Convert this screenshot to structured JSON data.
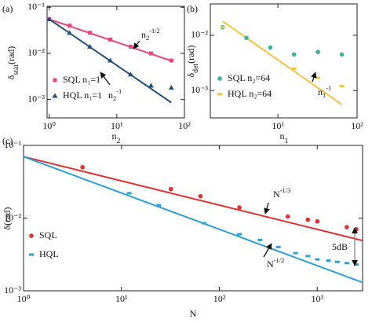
{
  "chart_data": [
    {
      "type": "scatter",
      "panel_label": "(a)",
      "xlabel": [
        {
          "t": "n"
        },
        {
          "t": "2",
          "s": "sub"
        }
      ],
      "ylabel": [
        {
          "t": "δ"
        },
        {
          "t": "stat",
          "s": "sub"
        },
        {
          "t": "(rad)"
        }
      ],
      "xlog": true,
      "ylog": true,
      "xlim": [
        0.93,
        100
      ],
      "ylim": [
        0.0004,
        0.105
      ],
      "xticks": [
        {
          "value": 1,
          "label": "10⁰"
        },
        {
          "value": 10,
          "label": "10¹"
        },
        {
          "value": 100,
          "label": "10²"
        }
      ],
      "yticks": [
        {
          "value": 0.001,
          "label": "10⁻³"
        },
        {
          "value": 0.01,
          "label": "10⁻²"
        },
        {
          "value": 0.1,
          "label": "10⁻¹"
        }
      ],
      "series": [
        {
          "name": "SQL n₁=1",
          "color": "#e8457a",
          "marker": "square",
          "x": [
            1,
            2,
            4,
            8,
            16,
            32,
            64
          ],
          "values": [
            0.055,
            0.04,
            0.028,
            0.02,
            0.014,
            0.01,
            0.007
          ]
        },
        {
          "name": "HQL n₁=1",
          "color": "#1f4e79",
          "marker": "triangle",
          "x": [
            1,
            2,
            4,
            8,
            16,
            32,
            64
          ],
          "values": [
            0.055,
            0.028,
            0.014,
            0.007,
            0.0035,
            0.002,
            0.0018
          ]
        }
      ],
      "fits": [
        {
          "color": "#e8457a",
          "x": [
            1,
            64
          ],
          "values": [
            0.055,
            0.0069
          ]
        },
        {
          "color": "#1f4e79",
          "x": [
            1,
            64
          ],
          "values": [
            0.055,
            0.00086
          ]
        }
      ],
      "annotations": [
        {
          "text": [
            {
              "t": "n"
            },
            {
              "t": "2",
              "s": "sub"
            },
            {
              "t": "-1/2",
              "s": "sup"
            }
          ],
          "color": "#e8457a"
        },
        {
          "text": [
            {
              "t": "n"
            },
            {
              "t": "2",
              "s": "sub"
            },
            {
              "t": "-1",
              "s": "sup"
            }
          ],
          "color": "#1f4e79"
        }
      ]
    },
    {
      "type": "scatter",
      "panel_label": "(b)",
      "xlabel": [
        {
          "t": "n"
        },
        {
          "t": "1",
          "s": "sub"
        }
      ],
      "ylabel": [
        {
          "t": "δ"
        },
        {
          "t": "det",
          "s": "sub"
        },
        {
          "t": "(rad)"
        }
      ],
      "xlog": true,
      "ylog": true,
      "xlim": [
        1.4,
        100
      ],
      "ylim": [
        0.00032,
        0.037
      ],
      "xticks": [
        {
          "value": 10,
          "label": "10¹"
        },
        {
          "value": 100,
          "label": "10²"
        }
      ],
      "yticks": [
        {
          "value": 0.001,
          "label": "10⁻³"
        },
        {
          "value": 0.01,
          "label": "10⁻²"
        }
      ],
      "series": [
        {
          "name": "SQL n₂=64",
          "color": "#3cb39b",
          "marker": "circle",
          "x": [
            2,
            4,
            8,
            16,
            32,
            64
          ],
          "values": [
            0.014,
            0.009,
            0.006,
            0.0045,
            0.005,
            0.0045
          ]
        },
        {
          "name": "HQL n₂=64",
          "color": "#f5c242",
          "marker": "bar",
          "x": [
            2,
            16,
            32,
            64
          ],
          "values": [
            0.014,
            0.0025,
            0.0017,
            0.0012
          ]
        }
      ],
      "fits": [
        {
          "color": "#f5c242",
          "x": [
            2,
            64
          ],
          "values": [
            0.018,
            0.00056
          ]
        }
      ],
      "annotations": [
        {
          "text": [
            {
              "t": "n"
            },
            {
              "t": "1",
              "s": "sub"
            },
            {
              "t": "-1",
              "s": "sup"
            }
          ],
          "color": "#f5c242"
        }
      ]
    },
    {
      "type": "scatter",
      "panel_label": "(c)",
      "xlabel": [
        {
          "t": "N"
        }
      ],
      "ylabel": [
        {
          "t": "δ(rad)"
        }
      ],
      "xlog": true,
      "ylog": true,
      "xlim": [
        1,
        2900
      ],
      "ylim": [
        0.001,
        0.1
      ],
      "xticks": [
        {
          "value": 1,
          "label": "10⁰"
        },
        {
          "value": 10,
          "label": "10¹"
        },
        {
          "value": 100,
          "label": "10²"
        },
        {
          "value": 1000,
          "label": "10³"
        }
      ],
      "yticks": [
        {
          "value": 0.001,
          "label": "10⁻³"
        },
        {
          "value": 0.01,
          "label": "10⁻²"
        },
        {
          "value": 0.1,
          "label": "10⁻¹"
        }
      ],
      "series": [
        {
          "name": "SQL",
          "color": "#e03030",
          "marker": "circle",
          "x": [
            4,
            32,
            64,
            160,
            500,
            800,
            1000,
            2000,
            2500
          ],
          "values": [
            0.05,
            0.025,
            0.02,
            0.014,
            0.0105,
            0.0095,
            0.009,
            0.0075,
            0.007
          ]
        },
        {
          "name": "HQL",
          "color": "#2a9fd6",
          "marker": "bar",
          "x": [
            12,
            24,
            70,
            160,
            260,
            400,
            600,
            800,
            1000,
            1300,
            1600,
            2000,
            2500
          ],
          "values": [
            0.022,
            0.015,
            0.0085,
            0.006,
            0.005,
            0.004,
            0.0033,
            0.003,
            0.0027,
            0.0026,
            0.0025,
            0.0024,
            0.0023
          ]
        }
      ],
      "fits": [
        {
          "color": "#e03030",
          "x": [
            1,
            2900
          ],
          "values": [
            0.07,
            0.0049
          ]
        },
        {
          "color": "#2a9fd6",
          "x": [
            1,
            2900
          ],
          "values": [
            0.07,
            0.0013
          ]
        }
      ],
      "annotations": [
        {
          "text": [
            {
              "t": "N"
            },
            {
              "t": "-1/3",
              "s": "sup"
            }
          ],
          "color": "#e03030"
        },
        {
          "text": [
            {
              "t": "N"
            },
            {
              "t": "-1/2",
              "s": "sup"
            }
          ],
          "color": "#2a9fd6"
        },
        {
          "text": [
            {
              "t": "5dB"
            }
          ],
          "color": "#111"
        }
      ]
    }
  ]
}
